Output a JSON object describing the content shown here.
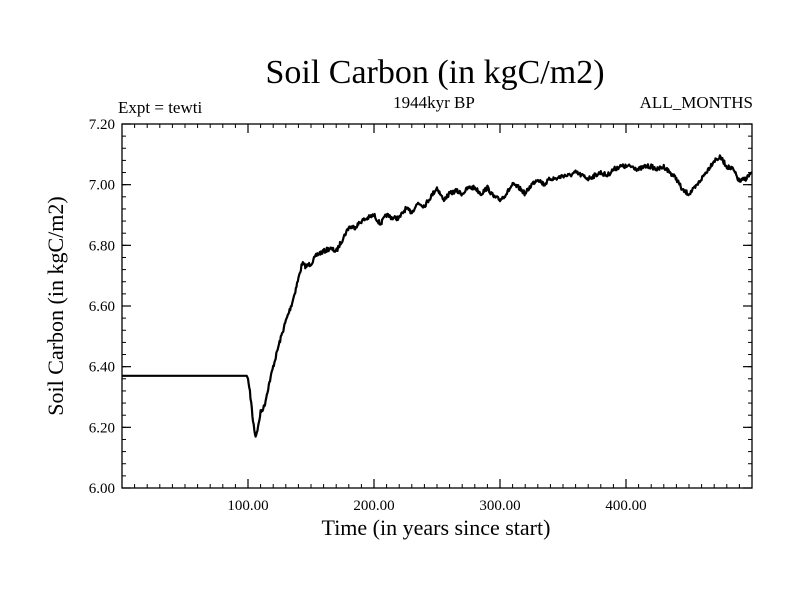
{
  "chart_data": {
    "type": "line",
    "title": "Soil Carbon (in kgC/m2)",
    "subtitle": "1944kyr BP",
    "left_note": "Expt = tewti",
    "right_note": "ALL_MONTHS",
    "xlabel": "Time (in years since start)",
    "ylabel": "Soil Carbon (in kgC/m2)",
    "xlim": [
      0,
      500
    ],
    "ylim": [
      6.0,
      7.2
    ],
    "x_ticks": [
      100,
      200,
      300,
      400
    ],
    "x_tick_labels": [
      "100.00",
      "200.00",
      "300.00",
      "400.00"
    ],
    "y_ticks": [
      6.0,
      6.2,
      6.4,
      6.6,
      6.8,
      7.0,
      7.2
    ],
    "y_tick_labels": [
      "6.00",
      "6.20",
      "6.40",
      "6.60",
      "6.80",
      "7.00",
      "7.20"
    ],
    "x_minor_step": 10,
    "y_minor_step": 0.04,
    "grid": false,
    "series": [
      {
        "name": "Soil Carbon",
        "x": [
          0,
          99,
          100,
          102,
          104,
          106,
          108,
          110,
          113,
          116,
          120,
          125,
          130,
          135,
          140,
          143,
          146,
          150,
          155,
          160,
          165,
          170,
          175,
          180,
          185,
          190,
          195,
          200,
          205,
          210,
          215,
          220,
          225,
          230,
          235,
          240,
          245,
          250,
          255,
          260,
          265,
          270,
          275,
          280,
          285,
          290,
          295,
          300,
          305,
          310,
          315,
          320,
          325,
          330,
          335,
          340,
          345,
          350,
          355,
          360,
          365,
          370,
          375,
          380,
          385,
          390,
          395,
          400,
          405,
          410,
          415,
          420,
          425,
          430,
          435,
          440,
          445,
          450,
          455,
          460,
          465,
          470,
          475,
          480,
          485,
          490,
          495,
          500
        ],
        "values": [
          6.37,
          6.37,
          6.36,
          6.3,
          6.22,
          6.17,
          6.2,
          6.25,
          6.27,
          6.33,
          6.4,
          6.48,
          6.55,
          6.61,
          6.69,
          6.74,
          6.73,
          6.74,
          6.77,
          6.78,
          6.79,
          6.78,
          6.82,
          6.86,
          6.86,
          6.88,
          6.89,
          6.9,
          6.87,
          6.9,
          6.89,
          6.89,
          6.92,
          6.91,
          6.94,
          6.93,
          6.96,
          6.99,
          6.95,
          6.97,
          6.98,
          6.97,
          6.99,
          6.99,
          6.97,
          6.99,
          6.96,
          6.95,
          6.97,
          7.0,
          6.99,
          6.97,
          7.0,
          7.02,
          7.0,
          7.02,
          7.02,
          7.03,
          7.03,
          7.04,
          7.03,
          7.02,
          7.03,
          7.04,
          7.03,
          7.05,
          7.06,
          7.06,
          7.06,
          7.05,
          7.06,
          7.06,
          7.05,
          7.06,
          7.04,
          7.02,
          6.98,
          6.97,
          6.99,
          7.02,
          7.05,
          7.08,
          7.09,
          7.06,
          7.05,
          7.01,
          7.02,
          7.04
        ]
      }
    ]
  }
}
